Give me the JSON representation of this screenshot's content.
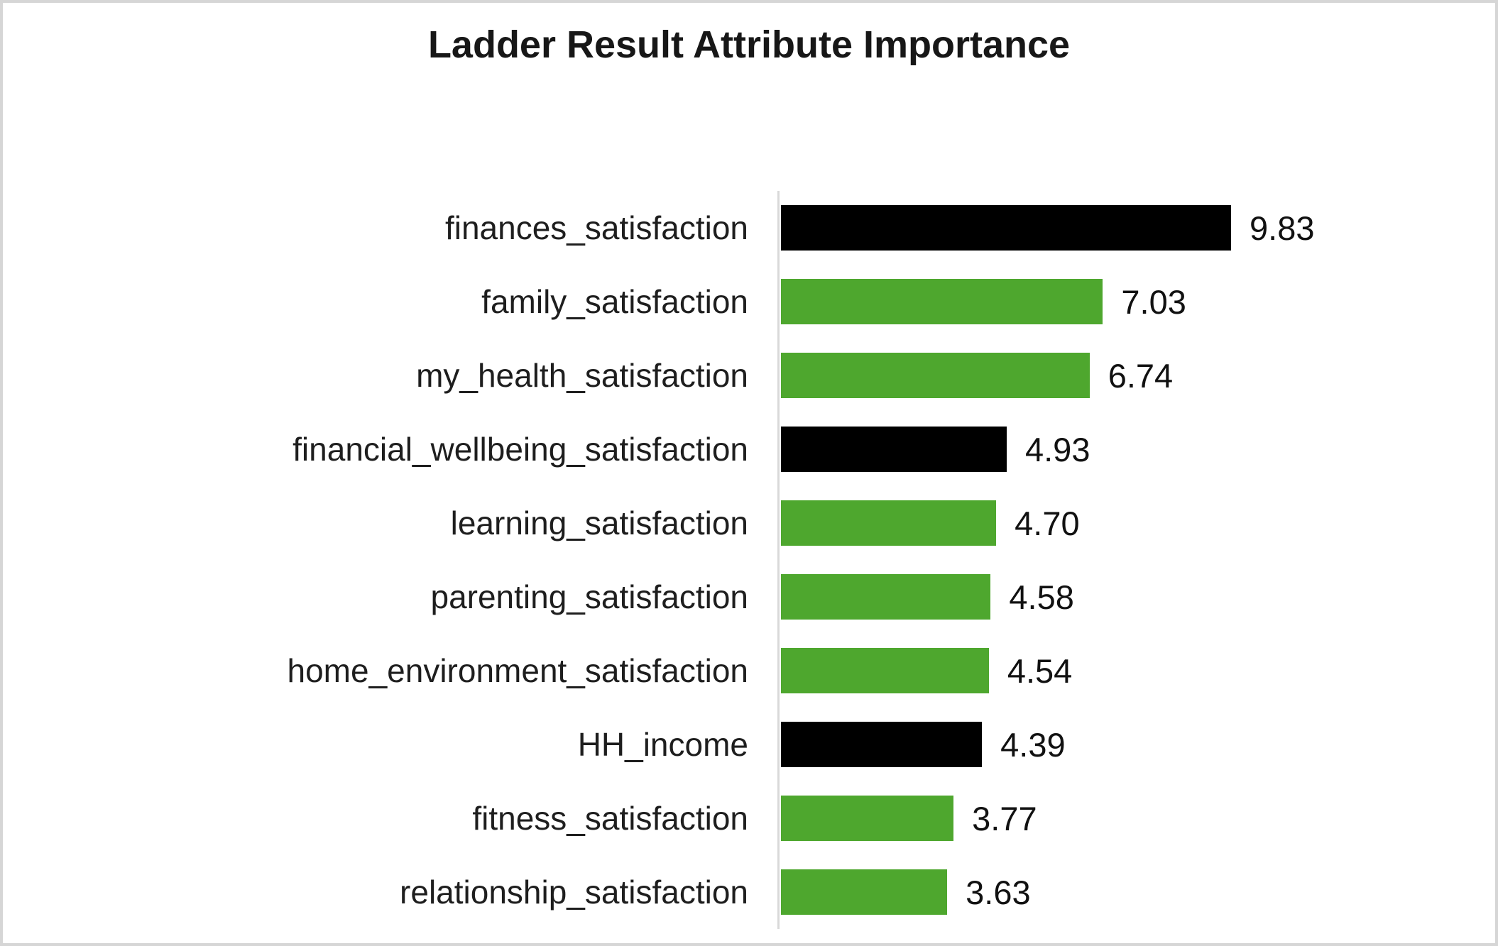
{
  "title": "Ladder Result Attribute Importance",
  "chart_data": {
    "type": "bar",
    "orientation": "horizontal",
    "title": "Ladder Result Attribute Importance",
    "xlabel": "",
    "ylabel": "",
    "grid": false,
    "legend": null,
    "xlim": [
      0,
      10.2
    ],
    "categories": [
      "finances_satisfaction",
      "family_satisfaction",
      "my_health_satisfaction",
      "financial_wellbeing_satisfaction",
      "learning_satisfaction",
      "parenting_satisfaction",
      "home_environment_satisfaction",
      "HH_income",
      "fitness_satisfaction",
      "relationship_satisfaction"
    ],
    "values": [
      9.83,
      7.03,
      6.74,
      4.93,
      4.7,
      4.58,
      4.54,
      4.39,
      3.77,
      3.63
    ],
    "value_labels": [
      "9.83",
      "7.03",
      "6.74",
      "4.93",
      "4.70",
      "4.58",
      "4.54",
      "4.39",
      "3.77",
      "3.63"
    ],
    "bar_colors": [
      "#000000",
      "#4EA72E",
      "#4EA72E",
      "#000000",
      "#4EA72E",
      "#4EA72E",
      "#4EA72E",
      "#000000",
      "#4EA72E",
      "#4EA72E"
    ],
    "colors": {
      "black_bar": "#000000",
      "green_bar": "#4EA72E",
      "axis_line": "#D9D9D9",
      "frame_border": "#D6D6D6",
      "background": "#FFFFFF",
      "text": "#111111"
    }
  }
}
